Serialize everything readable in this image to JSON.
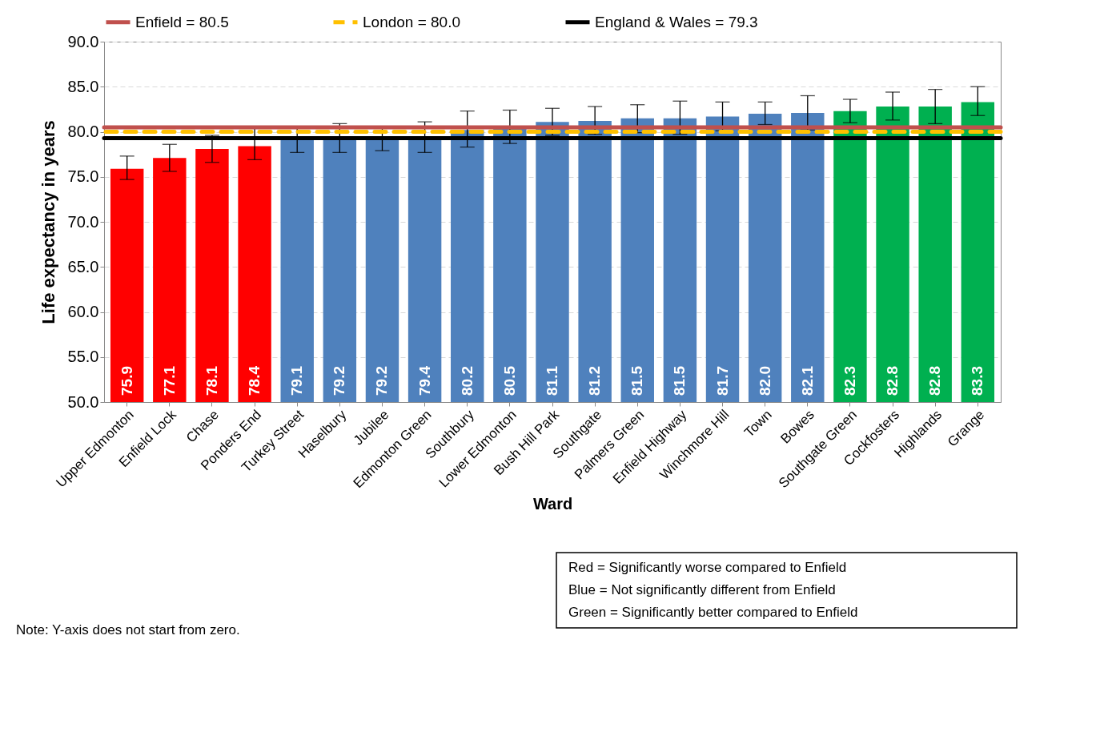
{
  "chart_data": {
    "type": "bar",
    "xlabel": "Ward",
    "ylabel": "Life expectancy in years",
    "categories": [
      "Upper Edmonton",
      "Enfield Lock",
      "Chase",
      "Ponders End",
      "Turkey Street",
      "Haselbury",
      "Jubilee",
      "Edmonton Green",
      "Southbury",
      "Lower Edmonton",
      "Bush Hill Park",
      "Southgate",
      "Palmers Green",
      "Enfield Highway",
      "Winchmore Hill",
      "Town",
      "Bowes",
      "Southgate Green",
      "Cockfosters",
      "Highlands",
      "Grange"
    ],
    "values": [
      75.9,
      77.1,
      78.1,
      78.4,
      79.1,
      79.2,
      79.2,
      79.4,
      80.2,
      80.5,
      81.1,
      81.2,
      81.5,
      81.5,
      81.7,
      82.0,
      82.1,
      82.3,
      82.8,
      82.8,
      83.3
    ],
    "colors": [
      "#ff0000",
      "#ff0000",
      "#ff0000",
      "#ff0000",
      "#4f81bd",
      "#4f81bd",
      "#4f81bd",
      "#4f81bd",
      "#4f81bd",
      "#4f81bd",
      "#4f81bd",
      "#4f81bd",
      "#4f81bd",
      "#4f81bd",
      "#4f81bd",
      "#4f81bd",
      "#4f81bd",
      "#00b050",
      "#00b050",
      "#00b050",
      "#00b050"
    ],
    "errors": [
      [
        74.7,
        77.3
      ],
      [
        75.6,
        78.6
      ],
      [
        76.6,
        79.6
      ],
      [
        76.9,
        80.4
      ],
      [
        77.7,
        80.5
      ],
      [
        77.7,
        80.9
      ],
      [
        77.9,
        80.4
      ],
      [
        77.7,
        81.1
      ],
      [
        78.3,
        82.3
      ],
      [
        78.7,
        82.4
      ],
      [
        79.6,
        82.6
      ],
      [
        79.7,
        82.8
      ],
      [
        79.9,
        83.0
      ],
      [
        79.7,
        83.4
      ],
      [
        80.1,
        83.3
      ],
      [
        80.8,
        83.3
      ],
      [
        80.2,
        84.0
      ],
      [
        81.0,
        83.6
      ],
      [
        81.3,
        84.4
      ],
      [
        80.9,
        84.7
      ],
      [
        81.8,
        85.0
      ]
    ],
    "value_labels": [
      "75.9",
      "77.1",
      "78.1",
      "78.4",
      "79.1",
      "79.2",
      "79.2",
      "79.4",
      "80.2",
      "80.5",
      "81.1",
      "81.2",
      "81.5",
      "81.5",
      "81.7",
      "82.0",
      "82.1",
      "82.3",
      "82.8",
      "82.8",
      "83.3"
    ],
    "ylim": [
      50,
      90
    ],
    "yticks": [
      {
        "value": 50,
        "label": "50.0"
      },
      {
        "value": 55,
        "label": "55.0"
      },
      {
        "value": 60,
        "label": "60.0"
      },
      {
        "value": 65,
        "label": "65.0"
      },
      {
        "value": 70,
        "label": "70.0"
      },
      {
        "value": 75,
        "label": "75.0"
      },
      {
        "value": 80,
        "label": "80.0"
      },
      {
        "value": 85,
        "label": "85.0"
      },
      {
        "value": 90,
        "label": "90.0"
      }
    ],
    "grid": "y",
    "legend": "top",
    "ref_lines": [
      {
        "axis": "y",
        "value": 80.5,
        "label": "Enfield = 80.5",
        "color": "#c0504d",
        "line_style": "solid"
      },
      {
        "axis": "y",
        "value": 80.0,
        "label": "London = 80.0",
        "color": "#ffc000",
        "line_style": "dashed"
      },
      {
        "axis": "y",
        "value": 79.3,
        "label": "England & Wales = 79.3",
        "color": "#000000",
        "line_style": "solid"
      }
    ],
    "annotations": [
      "Red = Significantly worse compared to Enfield",
      "Blue = Not significantly different from Enfield",
      "Green = Significantly better compared to Enfield",
      "Note: Y-axis does not start from zero."
    ]
  }
}
